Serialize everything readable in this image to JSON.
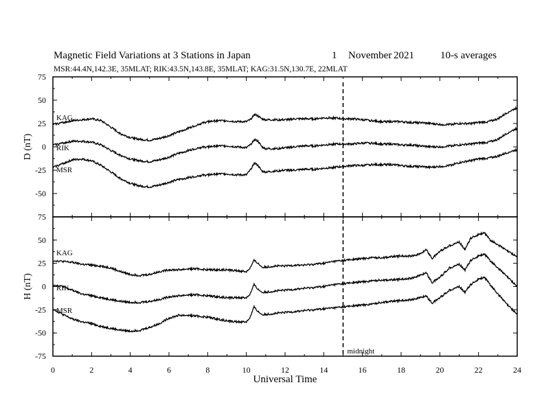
{
  "title": {
    "main": "Magnetic Field Variations at 3 Stations in Japan",
    "day": "1",
    "month": "November",
    "year": "2021",
    "averaging": "10-s averages"
  },
  "subtitle": "MSR:44.4N,142.3E, 35MLAT;  RIK:43.5N,143.8E, 35MLAT;  KAG:31.5N,130.7E, 22MLAT",
  "chart_data": [
    {
      "type": "line",
      "ylabel": "D (nT)",
      "xlim": [
        0,
        24
      ],
      "ylim": [
        -75,
        75
      ],
      "yticks": [
        75,
        50,
        25,
        0,
        -25,
        -50,
        -75
      ],
      "series": [
        {
          "name": "KAG",
          "x": [
            0,
            0.5,
            1,
            1.5,
            2,
            2.5,
            3,
            3.5,
            4,
            4.5,
            5,
            5.5,
            6,
            6.5,
            7,
            7.5,
            8,
            8.5,
            9,
            9.5,
            10,
            10.2,
            10.4,
            10.6,
            10.8,
            11,
            11.5,
            12,
            12.5,
            13,
            13.5,
            14,
            14.5,
            15,
            15.5,
            16,
            16.5,
            17,
            17.5,
            18,
            18.5,
            19,
            19.5,
            20,
            20.5,
            21,
            21.5,
            22,
            22.5,
            23,
            23.5,
            24
          ],
          "y": [
            24,
            26,
            28,
            29,
            30,
            28,
            21,
            14,
            10,
            8,
            7,
            9,
            12,
            16,
            20,
            24,
            27,
            28,
            28,
            27,
            27,
            29,
            35,
            33,
            30,
            29,
            29,
            29,
            30,
            30,
            30,
            31,
            31,
            30,
            30,
            29,
            28,
            27,
            27,
            27,
            26,
            26,
            25,
            24,
            24,
            25,
            25,
            26,
            27,
            30,
            37,
            42
          ]
        },
        {
          "name": "RIK",
          "x": [
            0,
            0.5,
            1,
            1.5,
            2,
            2.5,
            3,
            3.5,
            4,
            4.5,
            5,
            5.5,
            6,
            6.5,
            7,
            7.5,
            8,
            8.5,
            9,
            9.5,
            10,
            10.2,
            10.4,
            10.6,
            10.8,
            11,
            11.5,
            12,
            12.5,
            13,
            13.5,
            14,
            14.5,
            15,
            15.5,
            16,
            16.5,
            17,
            17.5,
            18,
            18.5,
            19,
            19.5,
            20,
            20.5,
            21,
            21.5,
            22,
            22.5,
            23,
            23.5,
            24
          ],
          "y": [
            2,
            4,
            6,
            6,
            5,
            2,
            -4,
            -9,
            -13,
            -15,
            -16,
            -14,
            -11,
            -7,
            -4,
            -1,
            0,
            1,
            1,
            0,
            -1,
            2,
            8,
            6,
            0,
            -2,
            -2,
            -1,
            0,
            1,
            1,
            2,
            3,
            3,
            3,
            4,
            4,
            3,
            3,
            2,
            2,
            1,
            0,
            0,
            1,
            2,
            3,
            4,
            5,
            8,
            15,
            20
          ]
        },
        {
          "name": "MSR",
          "x": [
            0,
            0.5,
            1,
            1.5,
            2,
            2.5,
            3,
            3.5,
            4,
            4.5,
            5,
            5.5,
            6,
            6.5,
            7,
            7.5,
            8,
            8.5,
            9,
            9.5,
            10,
            10.2,
            10.4,
            10.6,
            10.8,
            11,
            11.5,
            12,
            12.5,
            13,
            13.5,
            14,
            14.5,
            15,
            15.5,
            16,
            16.5,
            17,
            17.5,
            18,
            18.5,
            19,
            19.5,
            20,
            20.5,
            21,
            21.5,
            22,
            22.5,
            23,
            23.5,
            24
          ],
          "y": [
            -22,
            -18,
            -14,
            -13,
            -15,
            -20,
            -27,
            -34,
            -39,
            -42,
            -43,
            -41,
            -38,
            -35,
            -33,
            -31,
            -30,
            -29,
            -29,
            -30,
            -30,
            -25,
            -17,
            -20,
            -26,
            -27,
            -26,
            -25,
            -25,
            -24,
            -24,
            -23,
            -22,
            -21,
            -20,
            -20,
            -19,
            -19,
            -19,
            -20,
            -21,
            -21,
            -22,
            -21,
            -20,
            -17,
            -15,
            -13,
            -12,
            -10,
            -6,
            -3
          ]
        }
      ]
    },
    {
      "type": "line",
      "ylabel": "H (nT)",
      "xlabel": "Universal Time",
      "xlim": [
        0,
        24
      ],
      "ylim": [
        -75,
        75
      ],
      "yticks": [
        75,
        50,
        25,
        0,
        -25,
        -50,
        -75
      ],
      "xticks": [
        0,
        2,
        4,
        6,
        8,
        10,
        12,
        14,
        16,
        18,
        20,
        22,
        24
      ],
      "series": [
        {
          "name": "KAG",
          "x": [
            0,
            0.5,
            1,
            1.5,
            2,
            2.5,
            3,
            3.5,
            4,
            4.5,
            5,
            5.5,
            6,
            6.5,
            7,
            7.5,
            8,
            8.5,
            9,
            9.5,
            10,
            10.2,
            10.4,
            10.6,
            10.8,
            11,
            11.5,
            12,
            12.5,
            13,
            13.5,
            14,
            14.5,
            15,
            15.5,
            16,
            16.5,
            17,
            17.5,
            18,
            18.5,
            19,
            19.3,
            19.6,
            20,
            20.5,
            21,
            21.3,
            21.6,
            22,
            22.3,
            22.6,
            23,
            23.5,
            24
          ],
          "y": [
            28,
            27,
            26,
            24,
            23,
            22,
            20,
            16,
            13,
            12,
            13,
            16,
            18,
            18,
            19,
            19,
            18,
            18,
            18,
            17,
            16,
            20,
            28,
            25,
            21,
            21,
            22,
            22,
            23,
            23,
            24,
            25,
            27,
            28,
            29,
            30,
            31,
            31,
            32,
            33,
            33,
            35,
            40,
            30,
            38,
            44,
            48,
            40,
            52,
            56,
            58,
            50,
            45,
            38,
            32
          ]
        },
        {
          "name": "RIK",
          "x": [
            0,
            0.5,
            1,
            1.5,
            2,
            2.5,
            3,
            3.5,
            4,
            4.5,
            5,
            5.5,
            6,
            6.5,
            7,
            7.5,
            8,
            8.5,
            9,
            9.5,
            10,
            10.2,
            10.4,
            10.6,
            10.8,
            11,
            11.5,
            12,
            12.5,
            13,
            13.5,
            14,
            14.5,
            15,
            15.5,
            16,
            16.5,
            17,
            17.5,
            18,
            18.5,
            19,
            19.3,
            19.6,
            20,
            20.5,
            21,
            21.3,
            21.6,
            22,
            22.3,
            22.6,
            23,
            23.5,
            24
          ],
          "y": [
            2,
            0,
            -4,
            -8,
            -10,
            -12,
            -14,
            -16,
            -17,
            -17,
            -16,
            -14,
            -11,
            -10,
            -9,
            -9,
            -10,
            -11,
            -12,
            -12,
            -12,
            -8,
            2,
            -3,
            -6,
            -6,
            -5,
            -4,
            -3,
            -2,
            -1,
            0,
            2,
            3,
            4,
            5,
            6,
            7,
            7,
            8,
            9,
            12,
            15,
            4,
            10,
            20,
            24,
            18,
            28,
            33,
            35,
            28,
            20,
            10,
            0
          ]
        },
        {
          "name": "MSR",
          "x": [
            0,
            0.5,
            1,
            1.5,
            2,
            2.5,
            3,
            3.5,
            4,
            4.5,
            5,
            5.5,
            6,
            6.5,
            7,
            7.5,
            8,
            8.5,
            9,
            9.5,
            10,
            10.2,
            10.4,
            10.6,
            10.8,
            11,
            11.5,
            12,
            12.5,
            13,
            13.5,
            14,
            14.5,
            15,
            15.5,
            16,
            16.5,
            17,
            17.5,
            18,
            18.5,
            19,
            19.3,
            19.6,
            20,
            20.5,
            21,
            21.3,
            21.6,
            22,
            22.3,
            22.6,
            23,
            23.5,
            24
          ],
          "y": [
            -24,
            -30,
            -35,
            -38,
            -40,
            -43,
            -45,
            -47,
            -48,
            -47,
            -44,
            -40,
            -34,
            -31,
            -31,
            -32,
            -33,
            -35,
            -37,
            -38,
            -38,
            -33,
            -22,
            -27,
            -30,
            -30,
            -29,
            -28,
            -27,
            -26,
            -25,
            -24,
            -23,
            -22,
            -21,
            -20,
            -19,
            -17,
            -16,
            -15,
            -14,
            -12,
            -10,
            -18,
            -12,
            -4,
            0,
            -6,
            2,
            8,
            10,
            2,
            -8,
            -20,
            -30
          ]
        }
      ]
    }
  ],
  "annotations": {
    "marker_x": 15,
    "marker_label": "midnight"
  }
}
